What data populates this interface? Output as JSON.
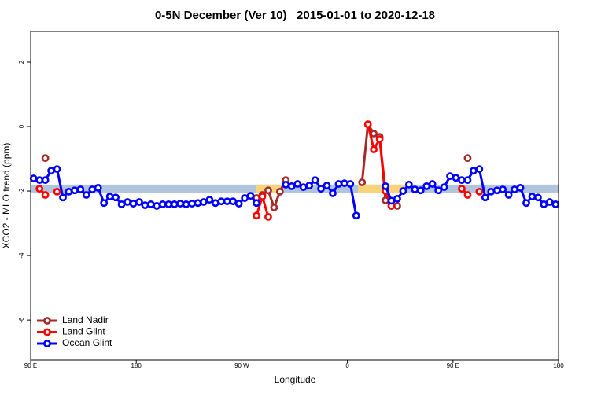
{
  "chart_data": {
    "type": "line",
    "title": "0-5N December (Ver 10)   2015-01-01 to 2020-12-18",
    "x_label": "Longitude",
    "y_label": "XCO2 - MLO trend (ppm)",
    "xlim": [
      90,
      540
    ],
    "ylim": [
      -7.24,
      2.95
    ],
    "xticks": [
      {
        "value": 90,
        "label": "90 E"
      },
      {
        "value": 180,
        "label": "180"
      },
      {
        "value": 270,
        "label": "90 W"
      },
      {
        "value": 360,
        "label": "0"
      },
      {
        "value": 450,
        "label": "90 E"
      },
      {
        "value": 540,
        "label": "180"
      }
    ],
    "yticks": [
      -6,
      -4,
      -2,
      0,
      2
    ],
    "legend": "bottom-left",
    "band": {
      "ylim": [
        -2.05,
        -1.8
      ],
      "color": "#b0c4de"
    },
    "highlights": {
      "color": "#f7d37a",
      "xlims": [
        [
          282,
          305
        ],
        [
          369,
          409
        ]
      ]
    },
    "x": [
      92.5,
      97.5,
      102.5,
      107.5,
      112.5,
      117.5,
      122.5,
      127.5,
      132.5,
      137.5,
      142.5,
      147.5,
      152.5,
      157.5,
      162.5,
      167.5,
      172.5,
      177.5,
      182.5,
      187.5,
      192.5,
      197.5,
      202.5,
      207.5,
      212.5,
      217.5,
      222.5,
      227.5,
      232.5,
      237.5,
      242.5,
      247.5,
      252.5,
      257.5,
      262.5,
      267.5,
      272.5,
      277.5,
      282.5,
      287.5,
      292.5,
      297.5,
      302.5,
      307.5,
      312.5,
      317.5,
      322.5,
      327.5,
      332.5,
      337.5,
      342.5,
      347.5,
      352.5,
      357.5,
      362.5,
      367.5,
      372.5,
      377.5,
      382.5,
      387.5,
      392.5,
      397.5,
      402.5,
      407.5,
      412.5,
      417.5,
      422.5,
      427.5,
      432.5,
      437.5,
      442.5,
      447.5,
      452.5,
      457.5,
      462.5,
      467.5,
      472.5,
      477.5,
      482.5,
      487.5,
      492.5,
      497.5,
      502.5,
      507.5,
      512.5,
      517.5,
      522.5,
      527.5,
      532.5,
      537.5
    ],
    "series": [
      {
        "name": "Land Nadir",
        "color": "#a52a2a",
        "values": [
          null,
          null,
          -0.98,
          null,
          null,
          null,
          null,
          null,
          null,
          null,
          null,
          null,
          null,
          null,
          null,
          null,
          null,
          null,
          null,
          null,
          null,
          null,
          null,
          null,
          null,
          null,
          null,
          null,
          null,
          null,
          null,
          null,
          null,
          null,
          null,
          null,
          null,
          null,
          -2.22,
          -2.12,
          -1.98,
          -2.51,
          -2.02,
          -1.66,
          null,
          null,
          null,
          null,
          null,
          null,
          null,
          null,
          null,
          null,
          null,
          null,
          -1.73,
          0.07,
          -0.22,
          -0.32,
          -2.29,
          -2.46,
          -2.46,
          null,
          null,
          null,
          null,
          null,
          null,
          null,
          null,
          null,
          null,
          null,
          -0.98,
          null,
          null,
          null,
          null,
          null,
          null,
          null,
          null,
          null,
          null,
          null,
          null,
          null,
          null,
          null
        ]
      },
      {
        "name": "Land Glint",
        "color": "#ff0000",
        "values": [
          null,
          -1.93,
          -2.12,
          null,
          -2.02,
          null,
          null,
          null,
          null,
          null,
          null,
          null,
          null,
          null,
          null,
          null,
          null,
          null,
          null,
          null,
          null,
          null,
          null,
          null,
          null,
          null,
          null,
          null,
          null,
          null,
          null,
          null,
          null,
          null,
          null,
          null,
          null,
          null,
          -2.76,
          -2.17,
          -2.8,
          null,
          null,
          null,
          null,
          null,
          null,
          null,
          null,
          null,
          null,
          null,
          null,
          null,
          null,
          null,
          null,
          0.07,
          -0.71,
          -0.39,
          -2.0,
          -2.46,
          null,
          null,
          null,
          null,
          null,
          null,
          null,
          null,
          null,
          null,
          null,
          -1.93,
          -2.12,
          null,
          -2.02,
          null,
          null,
          null,
          null,
          null,
          null,
          null,
          null,
          null,
          null,
          null,
          null,
          null
        ]
      },
      {
        "name": "Ocean Glint",
        "color": "#0000ff",
        "values": [
          -1.61,
          -1.66,
          -1.66,
          -1.37,
          -1.32,
          -2.2,
          -2.02,
          -1.98,
          -1.95,
          -2.12,
          -1.95,
          -1.9,
          -2.37,
          -2.17,
          -2.2,
          -2.41,
          -2.34,
          -2.39,
          -2.34,
          -2.44,
          -2.41,
          -2.46,
          -2.41,
          -2.41,
          -2.41,
          -2.39,
          -2.41,
          -2.39,
          -2.37,
          -2.34,
          -2.27,
          -2.37,
          -2.32,
          -2.32,
          -2.32,
          -2.39,
          -2.22,
          -2.15,
          -2.37,
          null,
          null,
          null,
          null,
          -1.8,
          -1.85,
          -1.78,
          -1.88,
          -1.83,
          -1.66,
          -1.93,
          -1.83,
          -2.07,
          -1.78,
          -1.76,
          -1.78,
          -2.76,
          null,
          null,
          null,
          null,
          -1.85,
          -2.3,
          -2.24,
          -2.0,
          -1.8,
          -1.95,
          -1.98,
          -1.85,
          -1.78,
          -1.98,
          -1.88,
          -1.54,
          -1.59,
          -1.66,
          -1.66,
          -1.37,
          -1.32,
          -2.2,
          -2.02,
          -1.98,
          -1.95,
          -2.12,
          -1.95,
          -1.9,
          -2.37,
          -2.17,
          -2.2,
          -2.41,
          -2.34,
          -2.41
        ]
      }
    ]
  }
}
